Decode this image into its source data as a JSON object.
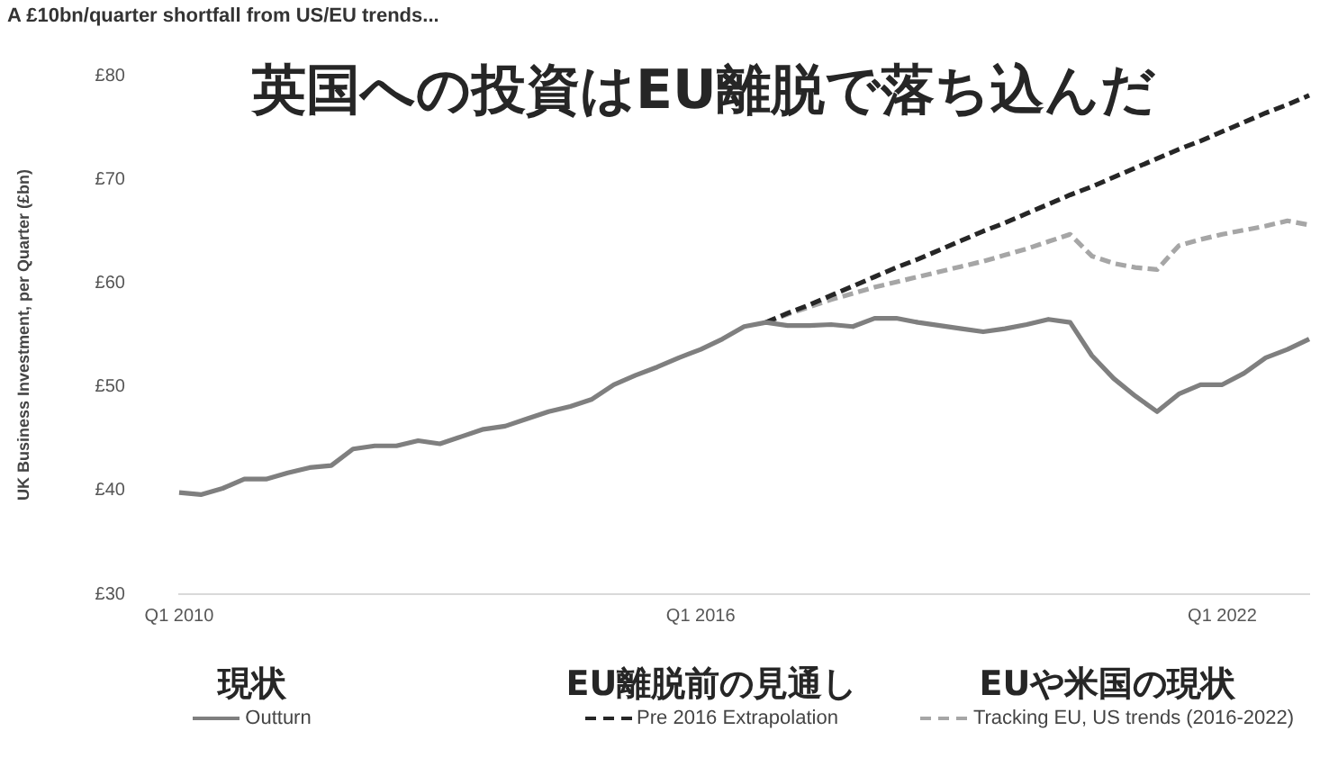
{
  "chart_data": {
    "type": "line",
    "title": "英国への投資はEU離脱で落ち込んだ",
    "subtitle": "A £10bn/quarter shortfall from US/EU trends...",
    "ylabel": "UK Business Investment, per Quarter (£bn)",
    "annotations": [
      "現状",
      "EU離脱前の見通し",
      "EUや米国の現状"
    ],
    "categories": [
      "Q1 2010",
      null,
      null,
      null,
      null,
      null,
      null,
      null,
      null,
      null,
      null,
      null,
      null,
      null,
      null,
      null,
      null,
      null,
      null,
      null,
      null,
      null,
      null,
      null,
      "Q1 2016",
      null,
      null,
      null,
      null,
      null,
      null,
      null,
      null,
      null,
      null,
      null,
      null,
      null,
      null,
      null,
      null,
      null,
      null,
      null,
      null,
      null,
      null,
      null,
      "Q1 2022",
      null,
      null,
      null,
      null
    ],
    "series": [
      {
        "name": "Outturn",
        "color": "#7f7f7f",
        "line_style": "solid",
        "values": [
          39.8,
          39.6,
          40.2,
          41.1,
          41.1,
          41.7,
          42.2,
          42.4,
          44.0,
          44.3,
          44.3,
          44.8,
          44.5,
          45.2,
          45.9,
          46.2,
          46.9,
          47.6,
          48.1,
          48.8,
          50.2,
          51.1,
          51.9,
          52.8,
          53.6,
          54.6,
          55.8,
          56.2,
          55.9,
          55.9,
          56.0,
          55.8,
          56.6,
          56.6,
          56.2,
          55.9,
          55.6,
          55.3,
          55.6,
          56.0,
          56.5,
          56.2,
          53.0,
          50.8,
          49.1,
          47.6,
          49.3,
          50.2,
          50.2,
          51.3,
          52.8,
          53.6,
          54.6
        ]
      },
      {
        "name": "Pre 2016 Extrapolation",
        "color": "#262626",
        "line_style": "dashed",
        "values": [
          null,
          null,
          null,
          null,
          null,
          null,
          null,
          null,
          null,
          null,
          null,
          null,
          null,
          null,
          null,
          null,
          null,
          null,
          null,
          null,
          null,
          null,
          null,
          null,
          null,
          null,
          null,
          56.2,
          57.1,
          57.9,
          58.8,
          59.7,
          60.6,
          61.5,
          62.3,
          63.2,
          64.1,
          65.0,
          65.8,
          66.7,
          67.6,
          68.5,
          69.3,
          70.2,
          71.1,
          72.0,
          72.9,
          73.7,
          74.6,
          75.5,
          76.4,
          77.2,
          78.1
        ]
      },
      {
        "name": "Tracking EU, US trends (2016-2022)",
        "color": "#a6a6a6",
        "line_style": "dashed",
        "values": [
          null,
          null,
          null,
          null,
          null,
          null,
          null,
          null,
          null,
          null,
          null,
          null,
          null,
          null,
          null,
          null,
          null,
          null,
          null,
          null,
          null,
          null,
          null,
          null,
          null,
          null,
          null,
          56.2,
          57.0,
          57.7,
          58.4,
          59.0,
          59.6,
          60.1,
          60.6,
          61.1,
          61.6,
          62.1,
          62.7,
          63.3,
          64.0,
          64.7,
          62.6,
          61.9,
          61.5,
          61.3,
          63.6,
          64.2,
          64.7,
          65.1,
          65.5,
          66.0,
          65.6
        ]
      }
    ],
    "ylim": [
      30,
      80
    ],
    "yticks": [
      {
        "value": 30,
        "label": "£30"
      },
      {
        "value": 40,
        "label": "£40"
      },
      {
        "value": 50,
        "label": "£50"
      },
      {
        "value": 60,
        "label": "£60"
      },
      {
        "value": 70,
        "label": "£70"
      },
      {
        "value": 80,
        "label": "£80"
      }
    ],
    "grid": false,
    "legend": "bottom",
    "marker": "none"
  }
}
